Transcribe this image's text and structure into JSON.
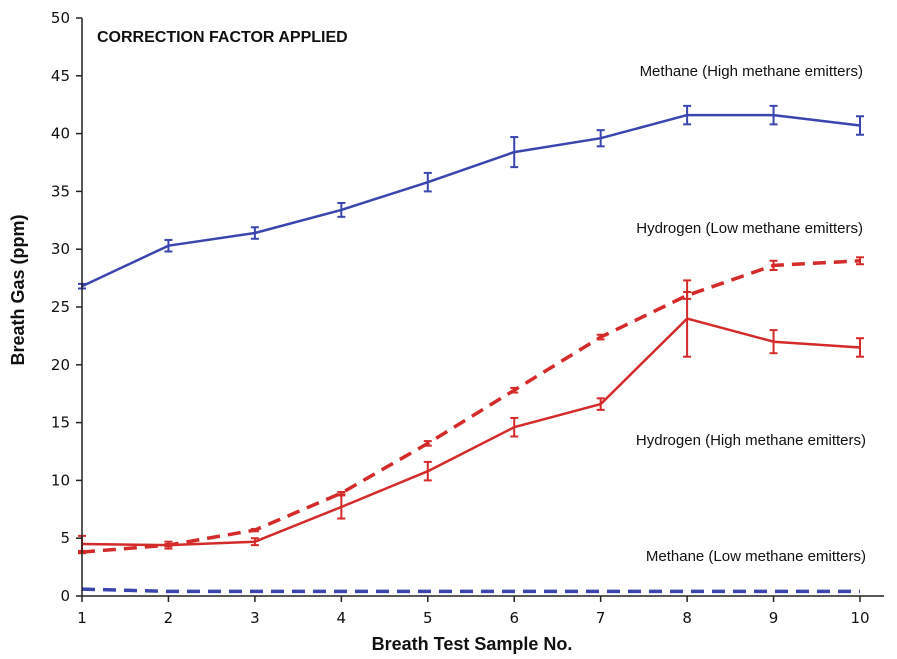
{
  "chart_data": {
    "type": "line",
    "title": "",
    "xlabel": "Breath Test Sample No.",
    "ylabel": "Breath Gas (ppm)",
    "xlim": [
      1,
      10
    ],
    "ylim": [
      0,
      50
    ],
    "x": [
      1,
      2,
      3,
      4,
      5,
      6,
      7,
      8,
      9,
      10
    ],
    "x_ticks": [
      "1",
      "2",
      "3",
      "4",
      "5",
      "6",
      "7",
      "8",
      "9",
      "10"
    ],
    "y_ticks": [
      "0",
      "5",
      "10",
      "15",
      "20",
      "25",
      "30",
      "35",
      "40",
      "45",
      "50"
    ],
    "grid": false,
    "annotations": [
      {
        "text": "CORRECTION FACTOR APPLIED",
        "style": "bold"
      },
      {
        "text": "Methane (High methane emitters)"
      },
      {
        "text": "Hydrogen (Low methane emitters)"
      },
      {
        "text": "Hydrogen (High methane emitters)"
      },
      {
        "text": "Methane (Low methane emitters)"
      }
    ],
    "series": [
      {
        "name": "Methane (High methane emitters)",
        "color": "#3a45b0",
        "dash": false,
        "values": [
          26.8,
          30.3,
          31.4,
          33.4,
          35.8,
          38.4,
          39.6,
          41.6,
          41.6,
          40.7
        ],
        "errors": [
          0.2,
          0.5,
          0.5,
          0.6,
          0.8,
          1.3,
          0.7,
          0.8,
          0.8,
          0.8
        ]
      },
      {
        "name": "Hydrogen (Low methane emitters)",
        "color": "#d42a2a",
        "dash": true,
        "values": [
          3.8,
          4.4,
          5.7,
          8.9,
          13.2,
          17.8,
          22.4,
          26.0,
          28.6,
          29.0
        ],
        "errors": [
          0.1,
          0.1,
          0.1,
          0.1,
          0.2,
          0.2,
          0.2,
          0.3,
          0.4,
          0.3
        ]
      },
      {
        "name": "Hydrogen (High methane emitters)",
        "color": "#d42a2a",
        "dash": false,
        "values": [
          4.5,
          4.4,
          4.7,
          7.7,
          10.8,
          14.6,
          16.6,
          24.0,
          22.0,
          21.5
        ],
        "errors": [
          0.7,
          0.3,
          0.3,
          1.0,
          0.8,
          0.8,
          0.5,
          3.3,
          1.0,
          0.8
        ]
      },
      {
        "name": "Methane (Low methane emitters)",
        "color": "#3a45b0",
        "dash": true,
        "values": [
          0.6,
          0.4,
          0.4,
          0.4,
          0.4,
          0.4,
          0.4,
          0.4,
          0.4,
          0.4
        ],
        "errors": [
          0,
          0,
          0,
          0,
          0,
          0,
          0,
          0,
          0,
          0
        ]
      }
    ]
  }
}
